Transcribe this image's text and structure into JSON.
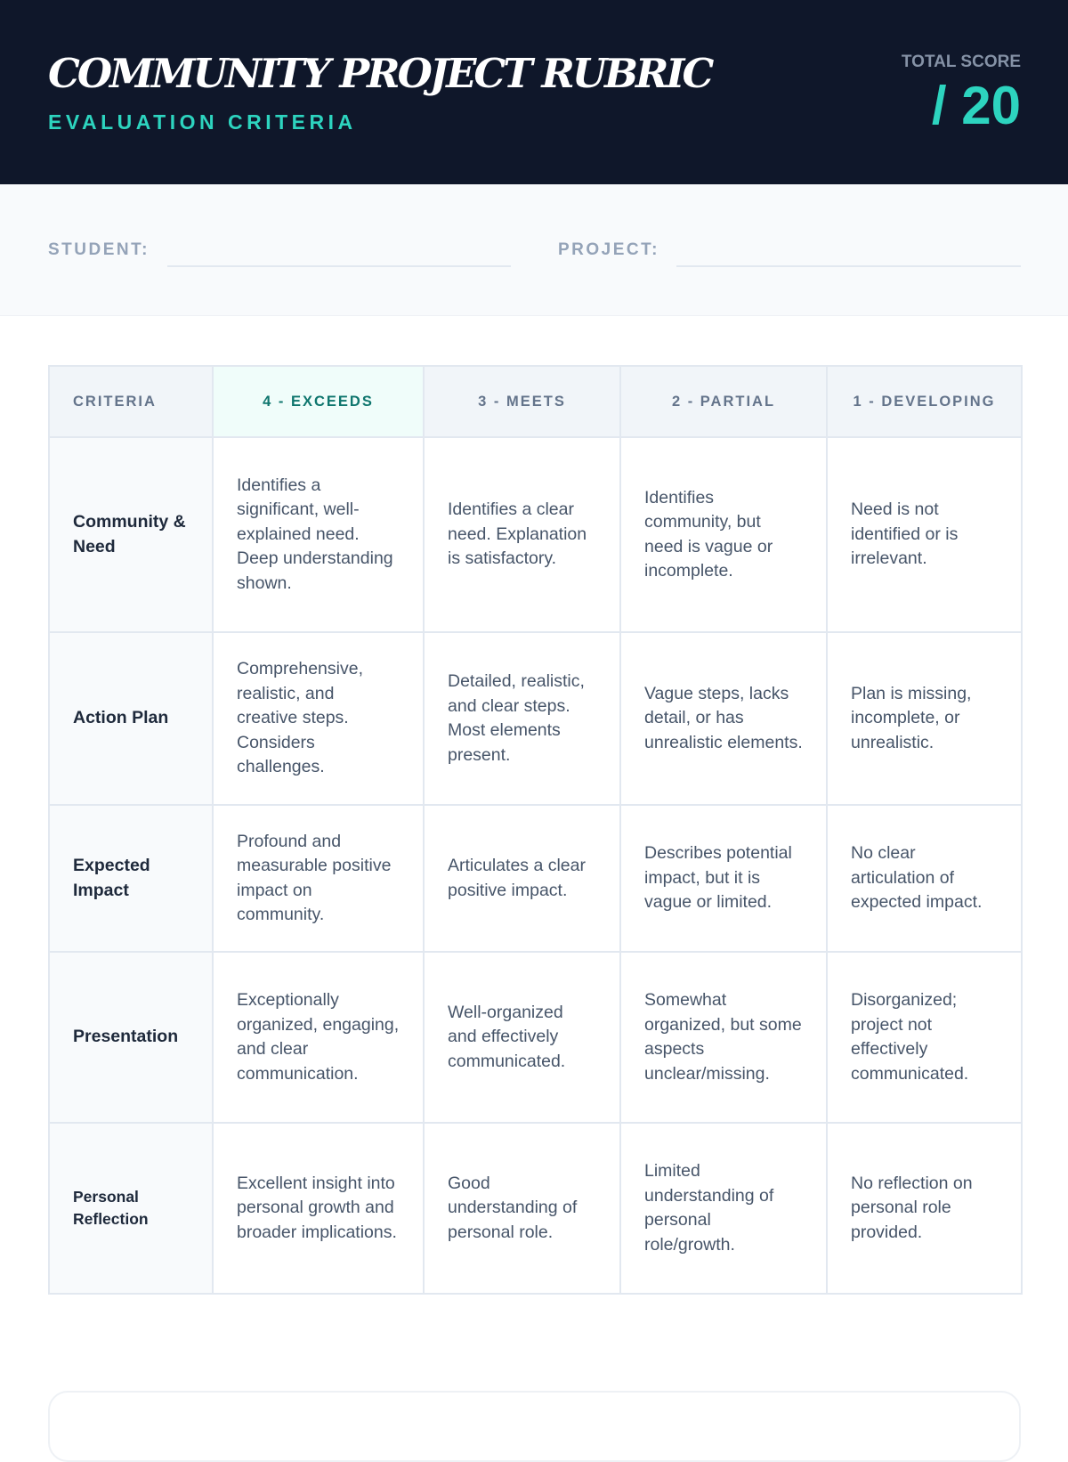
{
  "header": {
    "title": "COMMUNITY PROJECT RUBRIC",
    "subtitle": "EVALUATION CRITERIA",
    "total_score_label": "TOTAL SCORE",
    "total_score_value": "/ 20"
  },
  "info": {
    "student_label": "STUDENT:",
    "student_value": "",
    "project_label": "PROJECT:",
    "project_value": ""
  },
  "table": {
    "columns": [
      "CRITERIA",
      "4 - EXCEEDS",
      "3 - MEETS",
      "2 - PARTIAL",
      "1 - DEVELOPING"
    ],
    "rows": [
      {
        "criteria": "Community & Need",
        "cells": [
          "Identifies a significant, well-explained need. Deep understanding shown.",
          "Identifies a clear need. Explanation is satisfactory.",
          "Identifies community, but need is vague or incomplete.",
          "Need is not identified or is irrelevant."
        ]
      },
      {
        "criteria": "Action Plan",
        "cells": [
          "Comprehensive, realistic, and creative steps. Considers challenges.",
          "Detailed, realistic, and clear steps. Most elements present.",
          "Vague steps, lacks detail, or has unrealistic elements.",
          "Plan is missing, incomplete, or unrealistic."
        ]
      },
      {
        "criteria": "Expected Impact",
        "cells": [
          "Profound and measurable positive impact on community.",
          "Articulates a clear positive impact.",
          "Describes potential impact, but it is vague or limited.",
          "No clear articulation of expected impact."
        ]
      },
      {
        "criteria": "Presentation",
        "cells": [
          "Exceptionally organized, engaging, and clear communication.",
          "Well-organized and effectively communicated.",
          "Somewhat organized, but some aspects unclear/missing.",
          "Disorganized; project not effectively communicated."
        ]
      },
      {
        "criteria": "Personal Reflection",
        "cells": [
          "Excellent insight into personal growth and broader implications.",
          "Good understanding of personal role.",
          "Limited understanding of personal role/growth.",
          "No reflection on personal role provided."
        ]
      }
    ]
  },
  "colors": {
    "header_bg": "#0f172a",
    "accent": "#2dd4bf",
    "exceeds_text": "#0f766e"
  }
}
